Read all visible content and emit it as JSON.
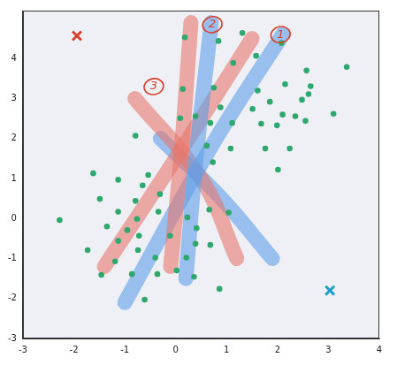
{
  "chart_data": {
    "type": "scatter",
    "xlim": [
      -3,
      4
    ],
    "ylim": [
      -3,
      5.2
    ],
    "xticks": [
      -3,
      -2,
      -1,
      0,
      1,
      2,
      3,
      4
    ],
    "yticks": [
      -3,
      -2,
      -1,
      0,
      1,
      2,
      3,
      4
    ],
    "grid": false,
    "series": [
      {
        "type": "line",
        "marker": "none",
        "line_style": "band",
        "color": "#e8776c",
        "x": [
          0.3,
          0.1,
          -0.1
        ],
        "values": [
          4.9,
          1.5,
          -1.2
        ]
      },
      {
        "type": "line",
        "marker": "none",
        "line_style": "band",
        "color": "#5f9fe8",
        "x": [
          0.7,
          0.4,
          0.2
        ],
        "values": [
          4.9,
          1.5,
          -1.5
        ]
      },
      {
        "type": "line",
        "marker": "none",
        "line_style": "band",
        "color": "#5f9fe8",
        "x": [
          2.1,
          0.7,
          -1.0
        ],
        "values": [
          4.6,
          1.8,
          -2.1
        ]
      },
      {
        "type": "line",
        "marker": "none",
        "line_style": "band",
        "color": "#e8776c",
        "x": [
          1.5,
          0.0,
          -1.4
        ],
        "values": [
          4.5,
          1.5,
          -1.2
        ]
      },
      {
        "type": "line",
        "marker": "none",
        "line_style": "band",
        "color": "#e8776c",
        "x": [
          -0.8,
          0.5,
          1.2
        ],
        "values": [
          3.0,
          1.0,
          -1.0
        ]
      },
      {
        "type": "line",
        "marker": "none",
        "line_style": "band",
        "color": "#5f9fe8",
        "x": [
          -0.3,
          0.9,
          1.9
        ],
        "values": [
          2.0,
          0.5,
          -1.0
        ]
      },
      {
        "type": "scatter",
        "marker": "circle",
        "color": "#2fa86e",
        "x": [
          0.18,
          0.84,
          1.31,
          1.58,
          2.08,
          3.36,
          2.57,
          2.61,
          3.1,
          2.15,
          1.85,
          1.51,
          1.13,
          1.11,
          0.68,
          0.14,
          0.75,
          0.88,
          0.09,
          0.39,
          1.61,
          2.1,
          2.35,
          2.55,
          1.68,
          1.99,
          1.76,
          2.24,
          2.01,
          2.48,
          2.65,
          1.08,
          0.61,
          0.73,
          -0.79,
          -0.54,
          -1.62,
          -1.13,
          -0.65,
          -0.79,
          -0.31,
          -1.49,
          -2.28,
          -1.13,
          -0.76,
          -0.95,
          -1.35,
          -0.34,
          0.23,
          0.66,
          1.04,
          0.41,
          -1.73,
          -1.13,
          -0.72,
          -0.74,
          -0.11,
          0.39,
          0.68,
          0.21,
          0.02,
          -0.36,
          -0.86,
          -1.46,
          -0.61,
          0.86,
          0.36,
          -1.19,
          -0.4
        ],
        "values": [
          4.53,
          4.44,
          4.64,
          4.07,
          4.39,
          3.79,
          3.7,
          3.11,
          2.62,
          3.36,
          2.92,
          2.74,
          3.89,
          2.39,
          2.39,
          3.24,
          3.27,
          2.78,
          2.51,
          2.56,
          3.2,
          2.6,
          2.56,
          2.44,
          2.37,
          2.33,
          1.75,
          1.75,
          1.22,
          2.97,
          3.31,
          1.75,
          1.82,
          1.41,
          2.07,
          1.09,
          1.13,
          0.97,
          0.83,
          0.44,
          0.61,
          0.49,
          -0.04,
          0.17,
          -0.01,
          -0.29,
          -0.2,
          0.17,
          0.03,
          0.22,
          0.15,
          -0.24,
          -0.79,
          -0.56,
          -0.43,
          -0.79,
          -0.43,
          -0.63,
          -0.66,
          -0.98,
          -1.3,
          -1.39,
          -1.39,
          -1.41,
          -2.03,
          -1.76,
          -1.46,
          -1.07,
          -0.98
        ]
      },
      {
        "type": "scatter",
        "marker": "x",
        "color": "#d8402c",
        "x": [
          -1.94
        ],
        "values": [
          4.57
        ]
      },
      {
        "type": "scatter",
        "marker": "x",
        "color": "#1f9fc8",
        "x": [
          3.03
        ],
        "values": [
          -1.8
        ]
      }
    ],
    "annotations": [
      {
        "text": "1",
        "x": 2.06,
        "y": 4.6
      },
      {
        "text": "2",
        "x": 0.72,
        "y": 4.85
      },
      {
        "text": "3",
        "x": -0.43,
        "y": 3.3
      }
    ]
  }
}
